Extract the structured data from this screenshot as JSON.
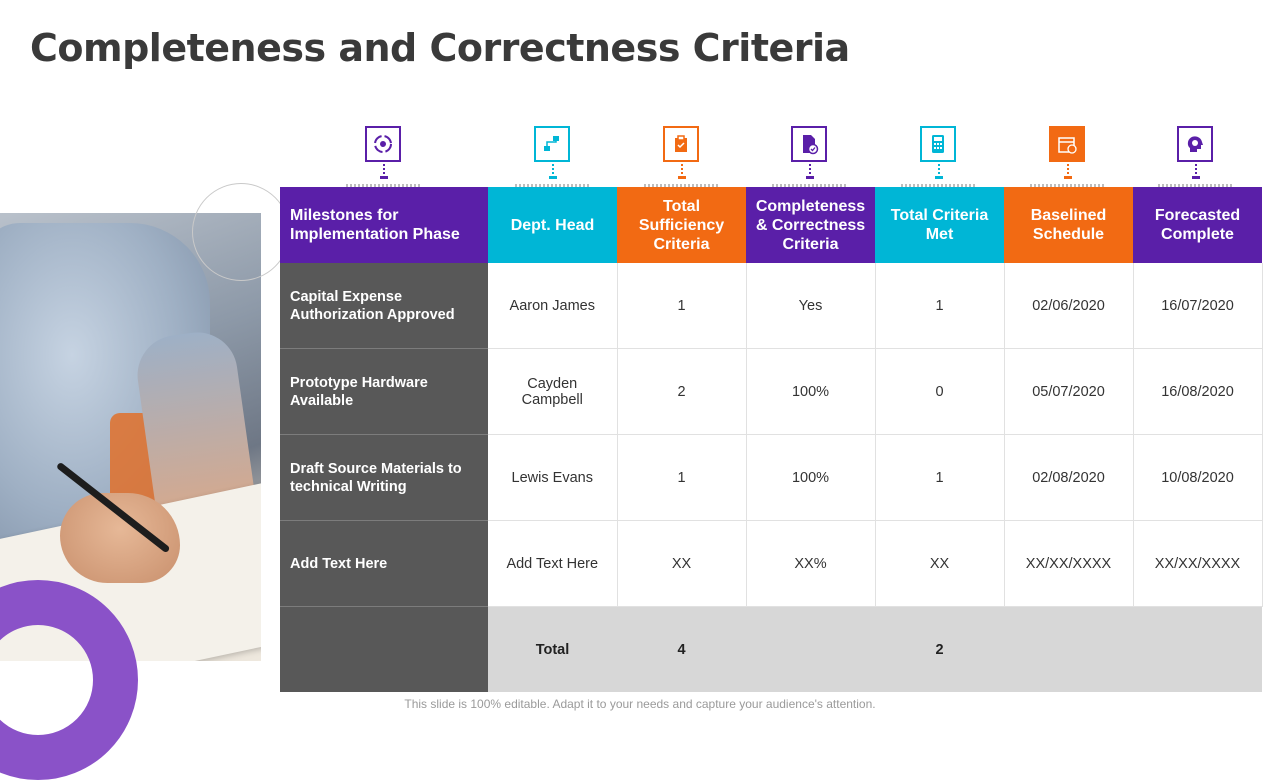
{
  "title": "Completeness and Correctness Criteria",
  "footer": "This slide is 100% editable. Adapt it to your needs and capture your audience's attention.",
  "colors": {
    "purple": "#5a1fa8",
    "cyan": "#00b6d6",
    "orange": "#f26a13",
    "dark_gray": "#585858",
    "light_gray": "#d7d7d7"
  },
  "icons": [
    "settings-cycle-icon",
    "organization-icon",
    "clipboard-icon",
    "verified-document-icon",
    "calculator-icon",
    "calendar-icon",
    "idea-head-icon"
  ],
  "headers": [
    "Milestones for Implementation Phase",
    "Dept. Head",
    "Total Sufficiency Criteria",
    "Completeness & Correctness Criteria",
    "Total Criteria Met",
    "Baselined Schedule",
    "Forecasted Complete"
  ],
  "rows": [
    [
      "Capital Expense Authorization Approved",
      "Aaron James",
      "1",
      "Yes",
      "1",
      "02/06/2020",
      "16/07/2020"
    ],
    [
      "Prototype Hardware Available",
      "Cayden Campbell",
      "2",
      "100%",
      "0",
      "05/07/2020",
      "16/08/2020"
    ],
    [
      "Draft Source Materials to technical Writing",
      "Lewis Evans",
      "1",
      "100%",
      "1",
      "02/08/2020",
      "10/08/2020"
    ],
    [
      "Add  Text Here",
      "Add Text Here",
      "XX",
      "XX%",
      "XX",
      "XX/XX/XXXX",
      "XX/XX/XXXX"
    ]
  ],
  "total": {
    "label": "Total",
    "sufficiency": "4",
    "met": "2"
  }
}
